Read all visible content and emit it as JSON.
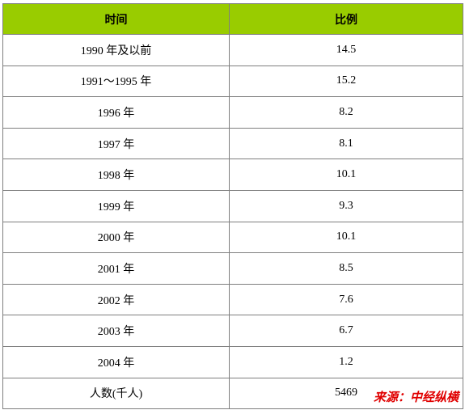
{
  "table": {
    "header": [
      "时间",
      "比例"
    ],
    "rows": [
      [
        "1990 年及以前",
        14.5
      ],
      [
        "1991～1995 年",
        15.2
      ],
      [
        "1996 年",
        8.2
      ],
      [
        "1997 年",
        8.1
      ],
      [
        "1998 年",
        10.1
      ],
      [
        "1999 年",
        9.3
      ],
      [
        "2000 年",
        10.1
      ],
      [
        "2001 年",
        8.5
      ],
      [
        "2002 年",
        7.6
      ],
      [
        "2003 年",
        6.7
      ],
      [
        "2004 年",
        1.2
      ],
      [
        "人数(千人)",
        5469
      ]
    ]
  },
  "watermark": "来源：中经纵横"
}
